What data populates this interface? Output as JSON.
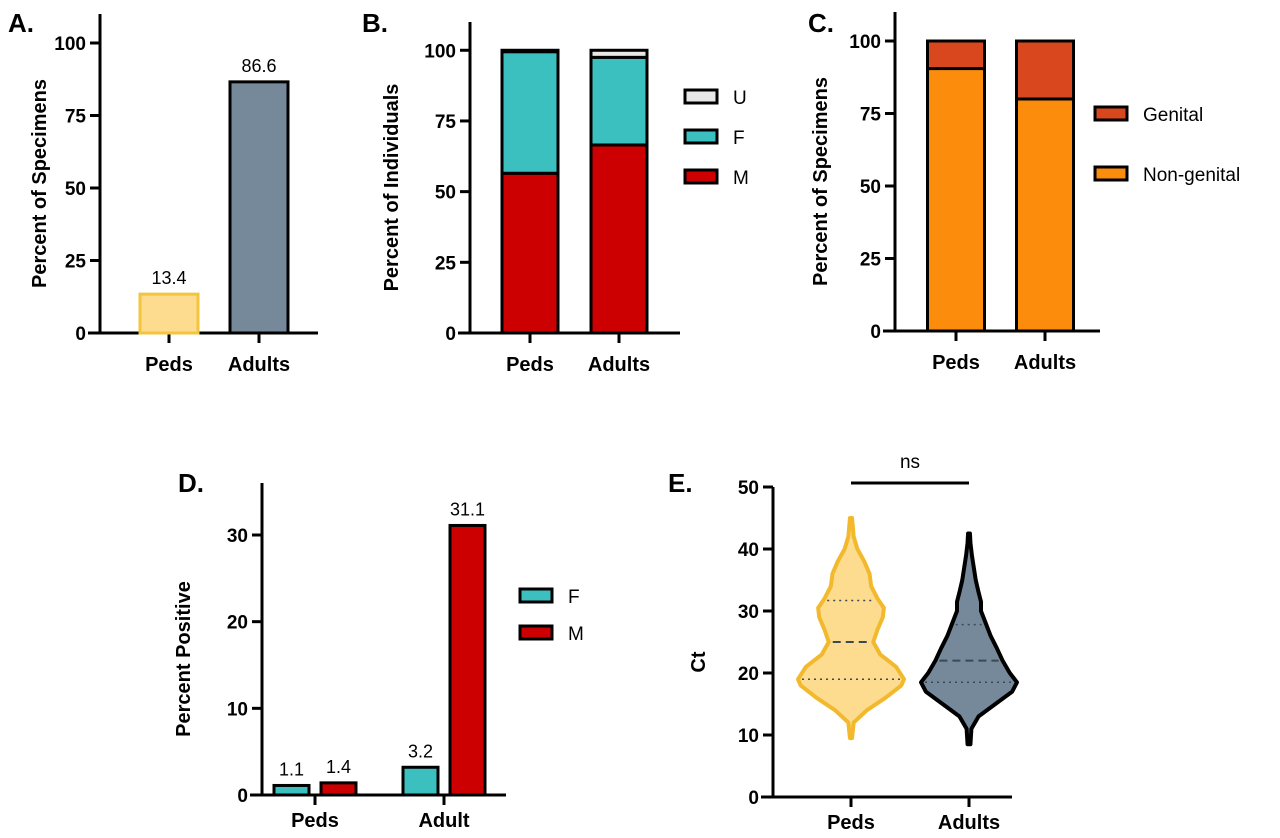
{
  "chart_data": [
    {
      "panel": "A.",
      "type": "bar",
      "ylabel": "Percent of Specimens",
      "categories": [
        "Peds",
        "Adults"
      ],
      "values": [
        13.4,
        86.6
      ],
      "data_labels": [
        "13.4",
        "86.6"
      ],
      "colors": [
        "#fddc8f",
        "#75899a"
      ],
      "edge_colors": [
        "#f2c53d",
        "#000000"
      ],
      "ylim": [
        0,
        110
      ],
      "yticks": [
        0,
        25,
        50,
        75,
        100
      ]
    },
    {
      "panel": "B.",
      "type": "bar",
      "stacked": true,
      "ylabel": "Percent of Individuals",
      "categories": [
        "Peds",
        "Adults"
      ],
      "series": [
        {
          "name": "M",
          "values": [
            56.5,
            66.5
          ],
          "color": "#cc0000"
        },
        {
          "name": "F",
          "values": [
            43,
            31
          ],
          "color": "#3bbfbf"
        },
        {
          "name": "U",
          "values": [
            0.5,
            2.5
          ],
          "color": "#e8e8e8"
        }
      ],
      "legend_order": [
        "U",
        "F",
        "M"
      ],
      "legend": "right",
      "ylim": [
        0,
        110
      ],
      "yticks": [
        0,
        25,
        50,
        75,
        100
      ]
    },
    {
      "panel": "C.",
      "type": "bar",
      "stacked": true,
      "ylabel": "Percent of Specimens",
      "categories": [
        "Peds",
        "Adults"
      ],
      "series": [
        {
          "name": "Non-genital",
          "values": [
            90.5,
            80
          ],
          "color": "#fb8c0c"
        },
        {
          "name": "Genital",
          "values": [
            9.5,
            20
          ],
          "color": "#d9471e"
        }
      ],
      "legend_order": [
        "Genital",
        "Non-genital"
      ],
      "legend": "right",
      "ylim": [
        0,
        110
      ],
      "yticks": [
        0,
        25,
        50,
        75,
        100
      ]
    },
    {
      "panel": "D.",
      "type": "bar",
      "grouped": true,
      "ylabel": "Percent Positive",
      "categories": [
        "Peds",
        "Adult"
      ],
      "series": [
        {
          "name": "F",
          "values": [
            1.1,
            3.2
          ],
          "labels": [
            "1.1",
            "3.2"
          ],
          "color": "#3bbfbf"
        },
        {
          "name": "M",
          "values": [
            1.4,
            31.1
          ],
          "labels": [
            "1.4",
            "31.1"
          ],
          "color": "#cc0000"
        }
      ],
      "legend": "right",
      "ylim": [
        0,
        36
      ],
      "yticks": [
        0,
        10,
        20,
        30
      ]
    },
    {
      "panel": "E.",
      "type": "violin",
      "ylabel": "Ct",
      "categories": [
        "Peds",
        "Adults"
      ],
      "groups": [
        {
          "name": "Peds",
          "fill": "#fddc8f",
          "edge": "#f2b92d",
          "min": 9.5,
          "max": 45,
          "q1": 19,
          "median": 25,
          "q3": 31.7,
          "profile": [
            [
              9.5,
              0.02
            ],
            [
              12,
              0.05
            ],
            [
              14,
              0.3
            ],
            [
              16,
              0.65
            ],
            [
              18,
              0.95
            ],
            [
              19,
              1
            ],
            [
              21,
              0.85
            ],
            [
              23,
              0.55
            ],
            [
              25,
              0.42
            ],
            [
              27,
              0.5
            ],
            [
              29,
              0.6
            ],
            [
              30.5,
              0.62
            ],
            [
              32,
              0.5
            ],
            [
              34,
              0.38
            ],
            [
              36,
              0.35
            ],
            [
              38,
              0.25
            ],
            [
              40,
              0.12
            ],
            [
              42,
              0.05
            ],
            [
              45,
              0.02
            ]
          ]
        },
        {
          "name": "Adults",
          "fill": "#75899a",
          "edge": "#000000",
          "min": 8.5,
          "max": 42.5,
          "q1": 18.5,
          "median": 22,
          "q3": 27.8,
          "profile": [
            [
              8.5,
              0.03
            ],
            [
              11,
              0.05
            ],
            [
              13,
              0.2
            ],
            [
              15,
              0.55
            ],
            [
              17,
              0.9
            ],
            [
              18.5,
              1
            ],
            [
              20,
              0.85
            ],
            [
              22,
              0.7
            ],
            [
              24,
              0.58
            ],
            [
              26,
              0.45
            ],
            [
              28,
              0.35
            ],
            [
              30,
              0.25
            ],
            [
              31.5,
              0.25
            ],
            [
              33,
              0.2
            ],
            [
              35,
              0.14
            ],
            [
              37,
              0.1
            ],
            [
              39,
              0.06
            ],
            [
              41,
              0.03
            ],
            [
              42.5,
              0.02
            ]
          ]
        }
      ],
      "annotation": "ns",
      "ylim": [
        0,
        50
      ],
      "yticks": [
        0,
        10,
        20,
        30,
        40,
        50
      ]
    }
  ]
}
